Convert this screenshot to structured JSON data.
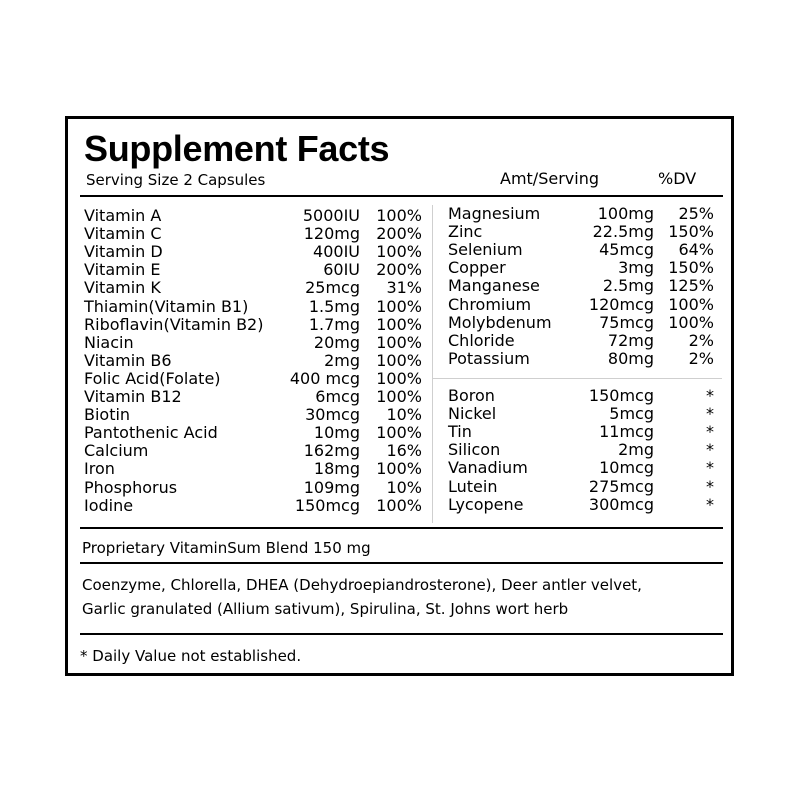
{
  "label": {
    "title": "Supplement Facts",
    "serving_size": "Serving Size 2 Capsules",
    "amt_header": "Amt/Serving",
    "dv_header": "%DV",
    "left_nutrients": [
      {
        "name": "Vitamin A",
        "amount": "5000IU",
        "dv": "100%"
      },
      {
        "name": "Vitamin C",
        "amount": "120mg",
        "dv": "200%"
      },
      {
        "name": "Vitamin D",
        "amount": "400IU",
        "dv": "100%"
      },
      {
        "name": "Vitamin E",
        "amount": "60IU",
        "dv": "200%"
      },
      {
        "name": "Vitamin K",
        "amount": "25mcg",
        "dv": "31%"
      },
      {
        "name": "Thiamin(Vitamin B1)",
        "amount": "1.5mg",
        "dv": "100%"
      },
      {
        "name": "Riboflavin(Vitamin B2)",
        "amount": "1.7mg",
        "dv": "100%"
      },
      {
        "name": "Niacin",
        "amount": "20mg",
        "dv": "100%"
      },
      {
        "name": "Vitamin B6",
        "amount": "2mg",
        "dv": "100%"
      },
      {
        "name": "Folic Acid(Folate)",
        "amount": "400 mcg",
        "dv": "100%"
      },
      {
        "name": "Vitamin B12",
        "amount": "6mcg",
        "dv": "100%"
      },
      {
        "name": "Biotin",
        "amount": "30mcg",
        "dv": "10%"
      },
      {
        "name": "Pantothenic Acid",
        "amount": "10mg",
        "dv": "100%"
      },
      {
        "name": "Calcium",
        "amount": "162mg",
        "dv": "16%"
      },
      {
        "name": "Iron",
        "amount": "18mg",
        "dv": "100%"
      },
      {
        "name": "Phosphorus",
        "amount": "109mg",
        "dv": "10%"
      },
      {
        "name": "Iodine",
        "amount": "150mcg",
        "dv": "100%"
      }
    ],
    "right_minerals": [
      {
        "name": "Magnesium",
        "amount": "100mg",
        "dv": "25%"
      },
      {
        "name": "Zinc",
        "amount": "22.5mg",
        "dv": "150%"
      },
      {
        "name": "Selenium",
        "amount": "45mcg",
        "dv": "64%"
      },
      {
        "name": "Copper",
        "amount": "3mg",
        "dv": "150%"
      },
      {
        "name": "Manganese",
        "amount": "2.5mg",
        "dv": "125%"
      },
      {
        "name": "Chromium",
        "amount": "120mcg",
        "dv": "100%"
      },
      {
        "name": "Molybdenum",
        "amount": "75mcg",
        "dv": "100%"
      },
      {
        "name": "Chloride",
        "amount": "72mg",
        "dv": "2%"
      },
      {
        "name": "Potassium",
        "amount": "80mg",
        "dv": "2%"
      }
    ],
    "right_trace": [
      {
        "name": "Boron",
        "amount": "150mcg",
        "dv": "*"
      },
      {
        "name": "Nickel",
        "amount": "5mcg",
        "dv": "*"
      },
      {
        "name": "Tin",
        "amount": "11mcg",
        "dv": "*"
      },
      {
        "name": "Silicon",
        "amount": "2mg",
        "dv": "*"
      },
      {
        "name": "Vanadium",
        "amount": "10mcg",
        "dv": "*"
      },
      {
        "name": "Lutein",
        "amount": "275mcg",
        "dv": "*"
      },
      {
        "name": "Lycopene",
        "amount": "300mcg",
        "dv": "*"
      }
    ],
    "blend": "Proprietary VitaminSum Blend 150 mg",
    "ingredients_line1": "Coenzyme, Chlorella, DHEA (Dehydroepiandrosterone), Deer antler velvet,",
    "ingredients_line2": "Garlic granulated (Allium sativum), Spirulina, St. Johns wort herb",
    "footnote": "* Daily Value not established."
  }
}
